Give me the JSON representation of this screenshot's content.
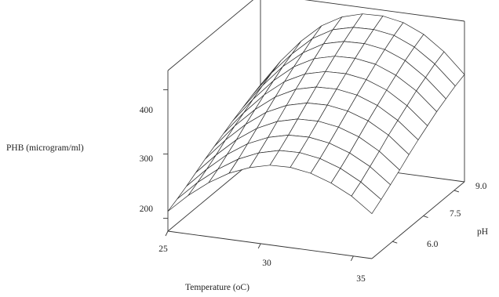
{
  "chart_data": {
    "type": "surface",
    "title": "",
    "xlabel": "Temperature (oC)",
    "ylabel": "pH",
    "zlabel": "PHB (microgram/ml)",
    "x_ticks": [
      "25",
      "30",
      "35"
    ],
    "y_ticks": [
      "6.0",
      "7.5",
      "9.0"
    ],
    "z_ticks": [
      "200",
      "300",
      "400"
    ],
    "xlim": [
      25,
      36
    ],
    "ylim": [
      5,
      9.5
    ],
    "zlim": [
      180,
      430
    ],
    "grid": false,
    "x": [
      25,
      26.1,
      27.2,
      28.3,
      29.4,
      30.5,
      31.6,
      32.7,
      33.8,
      34.9,
      36
    ],
    "y": [
      5,
      5.45,
      5.9,
      6.35,
      6.8,
      7.25,
      7.7,
      8.15,
      8.6,
      9.05,
      9.5
    ],
    "z": [
      [
        211,
        218,
        226,
        235,
        244,
        252,
        260,
        268,
        275,
        282,
        288
      ],
      [
        240,
        248,
        257,
        267,
        278,
        288,
        297,
        306,
        315,
        323,
        330
      ],
      [
        264,
        273,
        284,
        295,
        307,
        318,
        329,
        339,
        349,
        357,
        365
      ],
      [
        283,
        293,
        305,
        317,
        330,
        342,
        354,
        365,
        375,
        385,
        393
      ],
      [
        296,
        307,
        319,
        332,
        345,
        358,
        370,
        382,
        393,
        403,
        411
      ],
      [
        304,
        315,
        327,
        340,
        353,
        366,
        378,
        390,
        401,
        411,
        420
      ],
      [
        305,
        316,
        328,
        341,
        354,
        367,
        379,
        391,
        402,
        412,
        421
      ],
      [
        300,
        311,
        323,
        336,
        349,
        362,
        374,
        386,
        397,
        407,
        415
      ],
      [
        289,
        300,
        312,
        325,
        338,
        350,
        362,
        373,
        384,
        393,
        401
      ],
      [
        273,
        283,
        295,
        307,
        320,
        331,
        342,
        353,
        362,
        371,
        378
      ],
      [
        250,
        260,
        271,
        282,
        294,
        305,
        315,
        325,
        333,
        341,
        347
      ]
    ]
  }
}
